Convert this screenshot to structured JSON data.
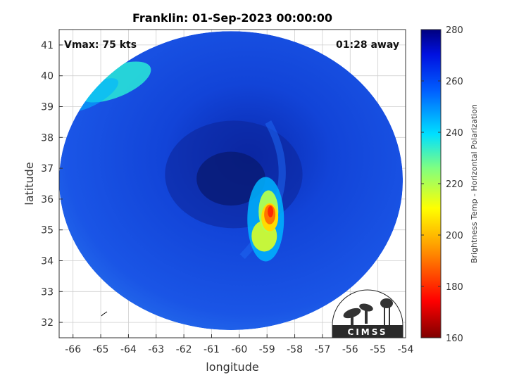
{
  "chart_data": {
    "type": "heatmap",
    "title": "Franklin: 01-Sep-2023 00:00:00",
    "xlabel": "longitude",
    "ylabel": "latitude",
    "xlim": [
      -66.5,
      -54
    ],
    "ylim": [
      31.5,
      41.5
    ],
    "xticks": [
      -66,
      -65,
      -64,
      -63,
      -62,
      -61,
      -60,
      -59,
      -58,
      -57,
      -56,
      -55,
      -54
    ],
    "yticks": [
      32,
      33,
      34,
      35,
      36,
      37,
      38,
      39,
      40,
      41
    ],
    "grid": true,
    "annotations": {
      "vmax": "Vmax: 75 kts",
      "time_away": "01:28 away"
    },
    "colorbar": {
      "label": "Brightness Temp - Horizontal Polarization",
      "range": [
        160,
        280
      ],
      "ticks": [
        160,
        180,
        200,
        220,
        240,
        260,
        280
      ],
      "colormap": "jet"
    },
    "swath": {
      "center": [
        -60.3,
        36.6
      ],
      "radius_lon": 6.2,
      "radius_lat": 4.85
    },
    "features": [
      {
        "kind": "eye",
        "lon": -60.2,
        "lat": 36.8,
        "value": 265
      },
      {
        "kind": "eyewall-core",
        "lon": -58.9,
        "lat": 35.5,
        "value": 190
      },
      {
        "kind": "rainband",
        "lon": -59.1,
        "lat": 34.8,
        "value": 215
      },
      {
        "kind": "outer-band",
        "lon": -64.5,
        "lat": 39.8,
        "value": 235
      }
    ],
    "logo": "CIMSS"
  }
}
